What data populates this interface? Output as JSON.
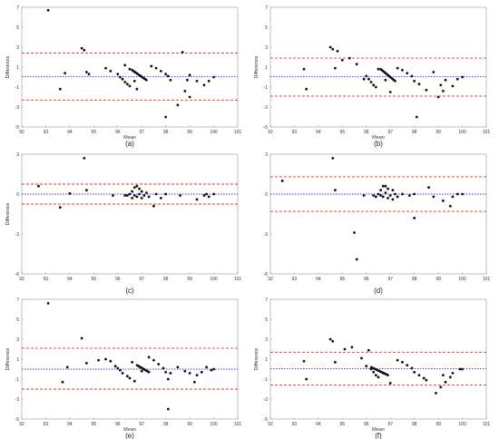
{
  "chart_data": [
    {
      "type": "scatter",
      "panel_label": "(a)",
      "xlabel": "Mean",
      "ylabel": "Difference",
      "xlim": [
        92,
        101
      ],
      "ylim": [
        -5,
        7
      ],
      "xticks": [
        92,
        93,
        94,
        95,
        96,
        97,
        98,
        99,
        100,
        101
      ],
      "yticks": [
        -5,
        -3,
        -1,
        1,
        3,
        5,
        7
      ],
      "bias": 0.05,
      "upper_loa": 2.4,
      "lower_loa": -2.3,
      "points": [
        [
          93.1,
          6.7
        ],
        [
          93.6,
          -1.2
        ],
        [
          93.8,
          0.4
        ],
        [
          94.5,
          2.9
        ],
        [
          94.6,
          2.7
        ],
        [
          94.7,
          0.5
        ],
        [
          94.8,
          0.3
        ],
        [
          95.5,
          0.9
        ],
        [
          95.7,
          0.6
        ],
        [
          96.0,
          0.3
        ],
        [
          96.1,
          0.0
        ],
        [
          96.2,
          -0.2
        ],
        [
          96.3,
          -0.5
        ],
        [
          96.4,
          -0.7
        ],
        [
          96.5,
          -0.9
        ],
        [
          96.3,
          1.2
        ],
        [
          96.5,
          0.8
        ],
        [
          96.7,
          -0.4
        ],
        [
          96.8,
          -1.2
        ],
        [
          97.4,
          1.1
        ],
        [
          97.6,
          0.9
        ],
        [
          97.8,
          0.6
        ],
        [
          98.0,
          0.3
        ],
        [
          98.1,
          0.1
        ],
        [
          98.2,
          -0.3
        ],
        [
          98.0,
          -4.0
        ],
        [
          98.5,
          -2.8
        ],
        [
          98.7,
          2.5
        ],
        [
          98.8,
          -1.4
        ],
        [
          98.9,
          -0.3
        ],
        [
          99.0,
          -2.0
        ],
        [
          99.0,
          0.2
        ],
        [
          99.3,
          -0.4
        ],
        [
          99.6,
          -0.8
        ],
        [
          99.8,
          -0.4
        ],
        [
          100.0,
          0.0
        ]
      ],
      "segment": [
        [
          96.6,
          0.7
        ],
        [
          97.2,
          -0.3
        ]
      ]
    },
    {
      "type": "scatter",
      "panel_label": "(b)",
      "xlabel": "Mean",
      "ylabel": "Difference",
      "xlim": [
        92,
        101
      ],
      "ylim": [
        -5,
        7
      ],
      "xticks": [
        92,
        93,
        94,
        95,
        96,
        97,
        98,
        99,
        100,
        101
      ],
      "yticks": [
        -5,
        -3,
        -1,
        1,
        3,
        5,
        7
      ],
      "bias": 0.05,
      "upper_loa": 1.9,
      "lower_loa": -1.9,
      "points": [
        [
          93.4,
          0.8
        ],
        [
          93.5,
          -1.2
        ],
        [
          94.5,
          3.0
        ],
        [
          94.6,
          2.8
        ],
        [
          94.7,
          0.9
        ],
        [
          94.8,
          2.6
        ],
        [
          95.0,
          1.7
        ],
        [
          95.3,
          1.9
        ],
        [
          95.6,
          1.3
        ],
        [
          95.9,
          -0.2
        ],
        [
          96.0,
          0.1
        ],
        [
          96.1,
          -0.2
        ],
        [
          96.2,
          -0.5
        ],
        [
          96.3,
          -0.8
        ],
        [
          96.4,
          -1.0
        ],
        [
          96.5,
          0.8
        ],
        [
          96.8,
          -0.3
        ],
        [
          97.0,
          -1.5
        ],
        [
          97.3,
          0.9
        ],
        [
          97.5,
          0.7
        ],
        [
          97.7,
          0.4
        ],
        [
          97.9,
          0.1
        ],
        [
          98.0,
          -0.4
        ],
        [
          98.1,
          -4.0
        ],
        [
          98.2,
          -0.7
        ],
        [
          98.5,
          -1.3
        ],
        [
          98.8,
          0.5
        ],
        [
          99.0,
          -2.0
        ],
        [
          99.1,
          -0.8
        ],
        [
          99.2,
          -1.4
        ],
        [
          99.3,
          -0.3
        ],
        [
          99.6,
          -0.9
        ],
        [
          99.8,
          -0.2
        ],
        [
          100.0,
          0.0
        ]
      ],
      "segment": [
        [
          96.6,
          0.8
        ],
        [
          97.2,
          -0.4
        ]
      ]
    },
    {
      "type": "scatter",
      "panel_label": "(c)",
      "xlabel": "",
      "ylabel": "Difference",
      "xlim": [
        92,
        101
      ],
      "ylim": [
        -6,
        3
      ],
      "xticks": [
        92,
        93,
        94,
        95,
        96,
        97,
        98,
        99,
        100,
        101
      ],
      "yticks": [
        -6,
        -3,
        0,
        3
      ],
      "bias": 0.0,
      "upper_loa": 0.75,
      "lower_loa": -0.75,
      "points": [
        [
          92.7,
          0.6
        ],
        [
          93.6,
          -1.0
        ],
        [
          94.0,
          0.05
        ],
        [
          94.6,
          2.7
        ],
        [
          94.7,
          0.3
        ],
        [
          95.8,
          -0.1
        ],
        [
          96.3,
          -0.1
        ],
        [
          96.4,
          -0.1
        ],
        [
          96.5,
          0.0
        ],
        [
          96.6,
          0.2
        ],
        [
          96.6,
          -0.3
        ],
        [
          96.7,
          0.5
        ],
        [
          96.7,
          -0.1
        ],
        [
          96.8,
          0.6
        ],
        [
          96.8,
          -0.2
        ],
        [
          96.9,
          0.4
        ],
        [
          96.9,
          0.0
        ],
        [
          97.0,
          -0.3
        ],
        [
          97.0,
          0.2
        ],
        [
          97.1,
          -0.1
        ],
        [
          97.2,
          0.1
        ],
        [
          97.3,
          -0.2
        ],
        [
          97.5,
          -0.9
        ],
        [
          97.6,
          0.0
        ],
        [
          97.8,
          -0.3
        ],
        [
          98.0,
          0.0
        ],
        [
          98.6,
          -0.1
        ],
        [
          99.3,
          -0.4
        ],
        [
          99.6,
          -0.1
        ],
        [
          99.7,
          0.0
        ],
        [
          99.8,
          -0.2
        ],
        [
          100.0,
          0.0
        ]
      ],
      "segment": []
    },
    {
      "type": "scatter",
      "panel_label": "(d)",
      "xlabel": "",
      "ylabel": "",
      "xlim": [
        92,
        101
      ],
      "ylim": [
        -6,
        3
      ],
      "xticks": [
        92,
        93,
        94,
        95,
        96,
        97,
        98,
        99,
        100,
        101
      ],
      "yticks": [
        -6,
        -3,
        0,
        3
      ],
      "bias": 0.0,
      "upper_loa": 1.3,
      "lower_loa": -1.3,
      "points": [
        [
          92.5,
          1.0
        ],
        [
          94.6,
          2.7
        ],
        [
          94.7,
          0.3
        ],
        [
          95.5,
          -2.9
        ],
        [
          95.6,
          -4.9
        ],
        [
          95.9,
          -0.1
        ],
        [
          96.3,
          -0.1
        ],
        [
          96.4,
          -0.2
        ],
        [
          96.5,
          0.0
        ],
        [
          96.6,
          -0.1
        ],
        [
          96.6,
          0.3
        ],
        [
          96.7,
          0.6
        ],
        [
          96.7,
          -0.2
        ],
        [
          96.8,
          0.6
        ],
        [
          96.8,
          0.1
        ],
        [
          96.9,
          0.4
        ],
        [
          96.9,
          -0.3
        ],
        [
          97.0,
          -0.1
        ],
        [
          97.1,
          0.3
        ],
        [
          97.1,
          -0.4
        ],
        [
          97.2,
          0.0
        ],
        [
          97.3,
          -0.2
        ],
        [
          97.5,
          0.0
        ],
        [
          97.8,
          -0.1
        ],
        [
          98.0,
          0.0
        ],
        [
          98.0,
          -1.8
        ],
        [
          98.6,
          0.5
        ],
        [
          98.8,
          -0.2
        ],
        [
          99.2,
          -0.5
        ],
        [
          99.5,
          -0.9
        ],
        [
          99.6,
          -0.2
        ],
        [
          99.8,
          0.0
        ],
        [
          100.0,
          0.0
        ]
      ],
      "segment": []
    },
    {
      "type": "scatter",
      "panel_label": "(e)",
      "xlabel": "Mean",
      "ylabel": "Difference",
      "xlim": [
        92,
        101
      ],
      "ylim": [
        -5,
        7
      ],
      "xticks": [
        92,
        93,
        94,
        95,
        96,
        97,
        98,
        99,
        100,
        101
      ],
      "yticks": [
        -5,
        -3,
        -1,
        1,
        3,
        5,
        7
      ],
      "bias": 0.0,
      "upper_loa": 2.1,
      "lower_loa": -2.0,
      "points": [
        [
          93.1,
          6.6
        ],
        [
          93.7,
          -1.3
        ],
        [
          93.9,
          0.2
        ],
        [
          94.5,
          3.1
        ],
        [
          94.7,
          0.6
        ],
        [
          95.2,
          0.9
        ],
        [
          95.5,
          1.0
        ],
        [
          95.7,
          0.8
        ],
        [
          95.9,
          0.3
        ],
        [
          96.0,
          0.1
        ],
        [
          96.1,
          -0.1
        ],
        [
          96.2,
          -0.4
        ],
        [
          96.4,
          -0.7
        ],
        [
          96.5,
          -0.9
        ],
        [
          96.6,
          0.7
        ],
        [
          96.7,
          -1.2
        ],
        [
          97.0,
          -0.2
        ],
        [
          97.3,
          1.2
        ],
        [
          97.5,
          0.9
        ],
        [
          97.7,
          0.5
        ],
        [
          97.9,
          0.1
        ],
        [
          98.0,
          -0.3
        ],
        [
          98.1,
          -1.0
        ],
        [
          98.1,
          -4.0
        ],
        [
          98.2,
          -0.4
        ],
        [
          98.5,
          0.2
        ],
        [
          98.8,
          -0.2
        ],
        [
          99.0,
          -0.4
        ],
        [
          99.2,
          -1.3
        ],
        [
          99.3,
          -0.6
        ],
        [
          99.5,
          -0.3
        ],
        [
          99.7,
          0.2
        ],
        [
          99.9,
          -0.1
        ],
        [
          100.0,
          0.0
        ]
      ],
      "segment": [
        [
          96.8,
          0.4
        ],
        [
          97.3,
          -0.3
        ]
      ]
    },
    {
      "type": "scatter",
      "panel_label": "(f)",
      "xlabel": "Mean",
      "ylabel": "Difference",
      "xlim": [
        92,
        101
      ],
      "ylim": [
        -5,
        7
      ],
      "xticks": [
        92,
        93,
        94,
        95,
        96,
        97,
        98,
        99,
        100,
        101
      ],
      "yticks": [
        -5,
        -3,
        -1,
        1,
        3,
        5,
        7
      ],
      "bias": 0.05,
      "upper_loa": 1.7,
      "lower_loa": -1.6,
      "points": [
        [
          93.4,
          0.8
        ],
        [
          93.5,
          -1.0
        ],
        [
          94.5,
          3.0
        ],
        [
          94.6,
          2.8
        ],
        [
          94.7,
          0.7
        ],
        [
          95.1,
          2.0
        ],
        [
          95.4,
          2.2
        ],
        [
          95.8,
          1.1
        ],
        [
          96.0,
          0.3
        ],
        [
          96.1,
          1.9
        ],
        [
          96.2,
          0.0
        ],
        [
          96.3,
          -0.3
        ],
        [
          96.4,
          -0.6
        ],
        [
          96.5,
          -0.8
        ],
        [
          96.7,
          -0.4
        ],
        [
          97.0,
          -1.4
        ],
        [
          97.3,
          0.9
        ],
        [
          97.5,
          0.7
        ],
        [
          97.7,
          0.4
        ],
        [
          97.9,
          0.1
        ],
        [
          98.0,
          -0.3
        ],
        [
          98.2,
          -0.6
        ],
        [
          98.4,
          -0.9
        ],
        [
          98.5,
          -1.1
        ],
        [
          98.9,
          -2.4
        ],
        [
          99.1,
          -1.8
        ],
        [
          99.2,
          -0.6
        ],
        [
          99.3,
          -1.3
        ],
        [
          99.5,
          -0.8
        ],
        [
          99.6,
          -0.4
        ],
        [
          99.9,
          0.0
        ],
        [
          100.0,
          0.0
        ]
      ],
      "segment": [
        [
          96.2,
          0.2
        ],
        [
          96.9,
          -0.6
        ]
      ]
    }
  ]
}
